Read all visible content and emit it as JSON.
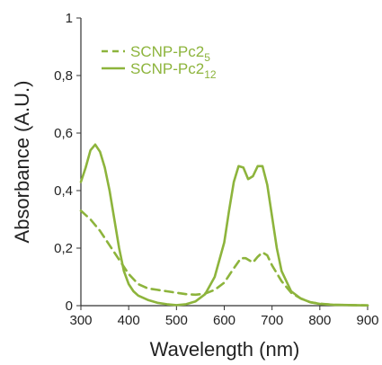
{
  "chart_data": {
    "type": "line",
    "title": "",
    "xlabel": "Wavelength (nm)",
    "ylabel": "Absorbance (A.U.)",
    "xlim": [
      300,
      900
    ],
    "ylim": [
      0,
      1
    ],
    "xticks": [
      300,
      400,
      500,
      600,
      700,
      800,
      900
    ],
    "yticks": [
      {
        "value": 0,
        "label": "0"
      },
      {
        "value": 0.2,
        "label": "0,2"
      },
      {
        "value": 0.4,
        "label": "0,4"
      },
      {
        "value": 0.6,
        "label": "0,6"
      },
      {
        "value": 0.8,
        "label": "0,8"
      },
      {
        "value": 1,
        "label": "1"
      }
    ],
    "grid": false,
    "legend_position": "top-left",
    "color": "#8db43c",
    "series": [
      {
        "name": "SCNP-Pc2",
        "subscript": "5",
        "style": "dashed",
        "x": [
          300,
          320,
          340,
          360,
          380,
          400,
          420,
          440,
          460,
          480,
          500,
          520,
          540,
          560,
          580,
          600,
          620,
          635,
          645,
          660,
          670,
          680,
          690,
          700,
          720,
          740,
          760,
          780,
          800,
          830,
          860,
          900
        ],
        "y": [
          0.33,
          0.3,
          0.26,
          0.21,
          0.16,
          0.11,
          0.075,
          0.06,
          0.055,
          0.05,
          0.045,
          0.04,
          0.038,
          0.042,
          0.055,
          0.08,
          0.13,
          0.165,
          0.165,
          0.15,
          0.17,
          0.185,
          0.175,
          0.14,
          0.085,
          0.045,
          0.025,
          0.012,
          0.007,
          0.003,
          0.002,
          0.001
        ]
      },
      {
        "name": "SCNP-Pc2",
        "subscript": "12",
        "style": "solid",
        "x": [
          300,
          310,
          320,
          330,
          340,
          350,
          360,
          370,
          380,
          390,
          400,
          410,
          420,
          440,
          460,
          480,
          500,
          520,
          540,
          560,
          580,
          600,
          610,
          620,
          630,
          640,
          650,
          660,
          670,
          680,
          690,
          700,
          710,
          720,
          740,
          760,
          780,
          800,
          830,
          860,
          900
        ],
        "y": [
          0.43,
          0.48,
          0.54,
          0.56,
          0.535,
          0.48,
          0.4,
          0.3,
          0.2,
          0.12,
          0.075,
          0.05,
          0.035,
          0.02,
          0.01,
          0.005,
          0.002,
          0.005,
          0.015,
          0.04,
          0.1,
          0.22,
          0.33,
          0.43,
          0.485,
          0.48,
          0.44,
          0.45,
          0.485,
          0.485,
          0.42,
          0.31,
          0.2,
          0.12,
          0.05,
          0.025,
          0.012,
          0.006,
          0.003,
          0.002,
          0.001
        ]
      }
    ]
  }
}
